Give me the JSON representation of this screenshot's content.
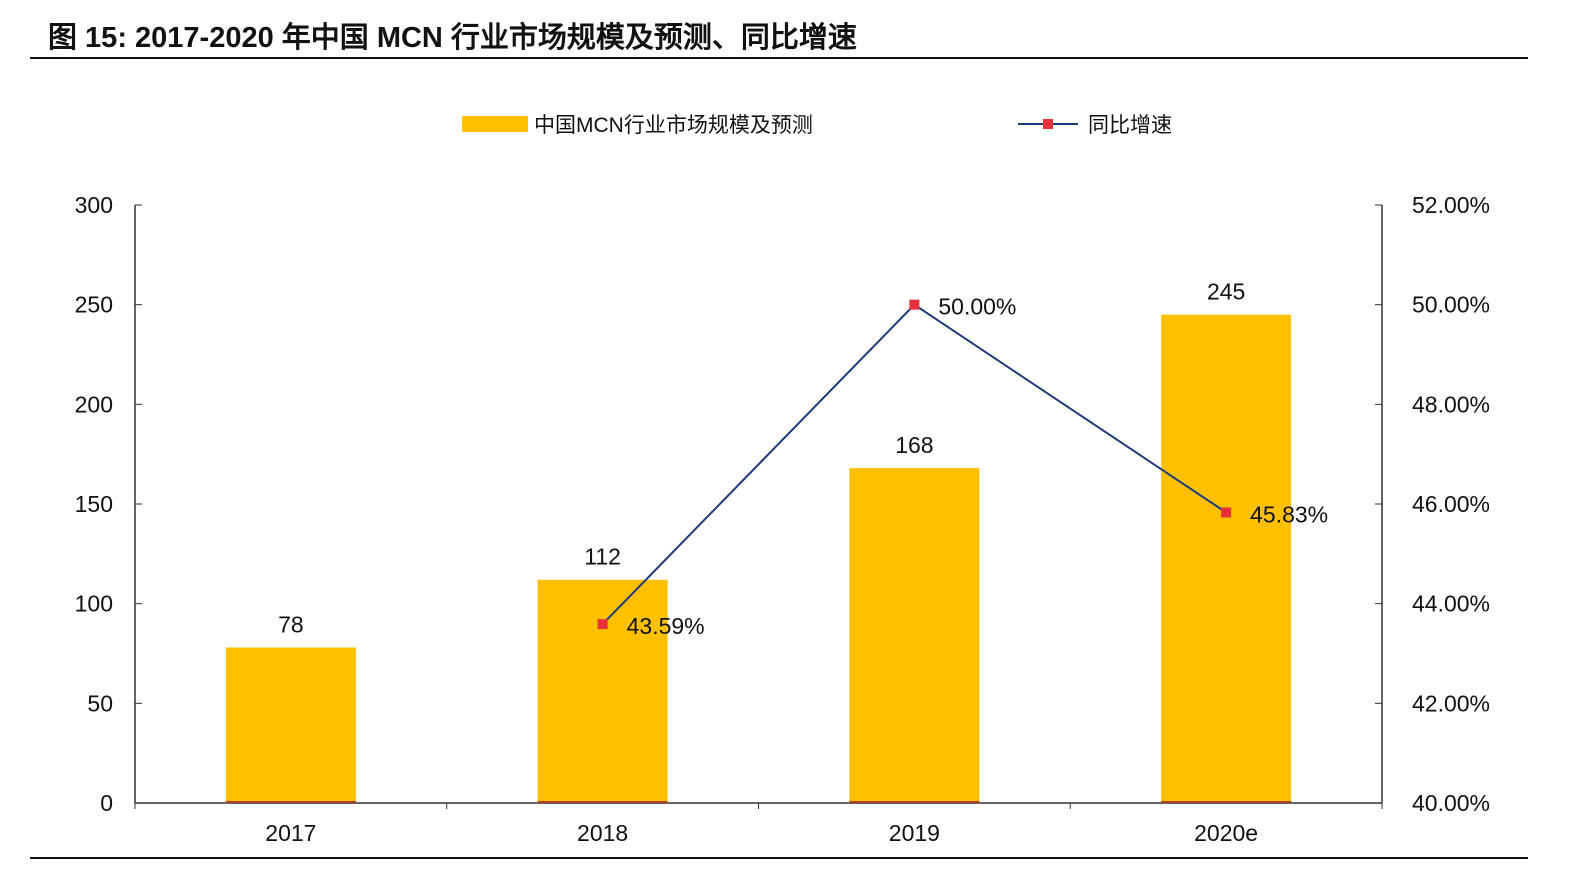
{
  "title": "图 15:  2017-2020 年中国 MCN 行业市场规模及预测、同比增速",
  "chart_data": {
    "type": "bar+line",
    "categories": [
      "2017",
      "2018",
      "2019",
      "2020e"
    ],
    "series": [
      {
        "name": "中国MCN行业市场规模及预测",
        "kind": "bar",
        "axis": "left",
        "color": "#FFC000",
        "values": [
          78,
          112,
          168,
          245
        ],
        "labels": [
          "78",
          "112",
          "168",
          "245"
        ]
      },
      {
        "name": "同比增速",
        "kind": "line",
        "axis": "right",
        "color": "#1F3A7A",
        "marker_color": "#E8303A",
        "values": [
          null,
          43.59,
          50.0,
          45.83
        ],
        "labels": [
          "",
          "43.59%",
          "50.00%",
          "45.83%"
        ]
      }
    ],
    "left_axis": {
      "range": [
        0,
        300
      ],
      "ticks": [
        "0",
        "50",
        "100",
        "150",
        "200",
        "250",
        "300"
      ]
    },
    "right_axis": {
      "range": [
        40,
        52
      ],
      "ticks": [
        "40.00%",
        "42.00%",
        "44.00%",
        "46.00%",
        "48.00%",
        "50.00%",
        "52.00%"
      ]
    },
    "legend": "top",
    "grid": false
  }
}
